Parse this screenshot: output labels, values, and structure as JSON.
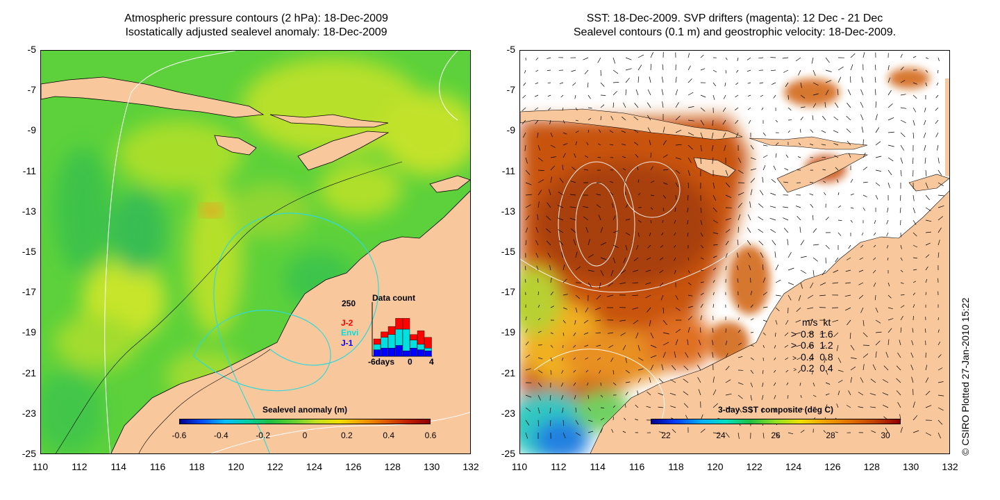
{
  "left_panel": {
    "title_line1": "Atmospheric pressure contours (2 hPa): 18-Dec-2009",
    "title_line2": "Isostatically adjusted sealevel anomaly: 18-Dec-2009",
    "colorbar_title": "Sealevel anomaly (m)",
    "colorbar_ticks": [
      "-0.6",
      "-0.4",
      "-0.2",
      "0",
      "0.2",
      "0.4",
      "0.6"
    ],
    "histogram": {
      "title": "Data count",
      "y_max_label": "250",
      "series": [
        {
          "name": "J-2",
          "color": "#ff0000"
        },
        {
          "name": "Envi",
          "color": "#00e0e0"
        },
        {
          "name": "J-1",
          "color": "#0000ff"
        }
      ],
      "x_labels": [
        "-6days",
        "0",
        "4"
      ]
    }
  },
  "right_panel": {
    "title_line1": "SST: 18-Dec-2009. SVP drifters (magenta): 12 Dec - 21 Dec",
    "title_line2": "Sealevel contours (0.1 m) and geostrophic velocity: 18-Dec-2009.",
    "colorbar_title": "3-day SST composite (deg C)",
    "colorbar_ticks": [
      "22",
      "24",
      "26",
      "28",
      "30"
    ],
    "velocity_legend": {
      "header_ms": "m/s",
      "header_kt": "kt",
      "rows": [
        {
          "ms": "0.8",
          "kt": "1.6"
        },
        {
          "ms": "0.6",
          "kt": "1.2"
        },
        {
          "ms": "0.4",
          "kt": "0.8"
        },
        {
          "ms": "0.2",
          "kt": "0.4"
        }
      ]
    }
  },
  "axes": {
    "y_ticks": [
      "-5",
      "-7",
      "-9",
      "-11",
      "-13",
      "-15",
      "-17",
      "-19",
      "-21",
      "-23",
      "-25"
    ],
    "x_ticks": [
      "110",
      "112",
      "114",
      "116",
      "118",
      "120",
      "122",
      "124",
      "126",
      "128",
      "130",
      "132"
    ]
  },
  "copyright": "© CSIRO Plotted 27-Jan-2010 15:22",
  "colors": {
    "land": "#f9c79c",
    "sla_base": "#5cd13b",
    "sst_warm": "#c8520e"
  }
}
